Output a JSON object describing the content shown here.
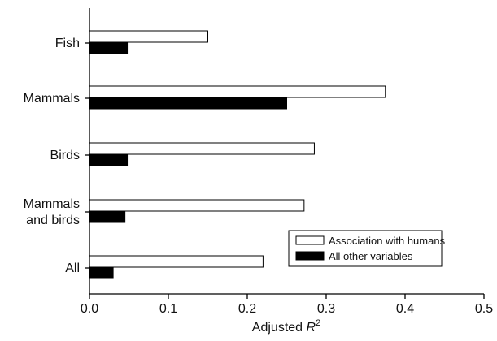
{
  "chart_data": {
    "type": "bar",
    "orientation": "horizontal",
    "categories": [
      [
        "Fish"
      ],
      [
        "Mammals"
      ],
      [
        "Birds"
      ],
      [
        "Mammals",
        "and birds"
      ],
      [
        "All"
      ]
    ],
    "series": [
      {
        "name": "Association with humans",
        "color": "#ffffff",
        "values": [
          0.15,
          0.375,
          0.285,
          0.272,
          0.22
        ]
      },
      {
        "name": "All other variables",
        "color": "#000000",
        "values": [
          0.048,
          0.25,
          0.048,
          0.045,
          0.03
        ]
      }
    ],
    "xlabel": "Adjusted",
    "xlabel_italic": "R",
    "xlabel_superscript": "2",
    "xlim": [
      0,
      0.5
    ],
    "xticks": [
      "0.0",
      "0.1",
      "0.2",
      "0.3",
      "0.4",
      "0.5"
    ],
    "grid": false,
    "legend_position": "bottom-right"
  }
}
